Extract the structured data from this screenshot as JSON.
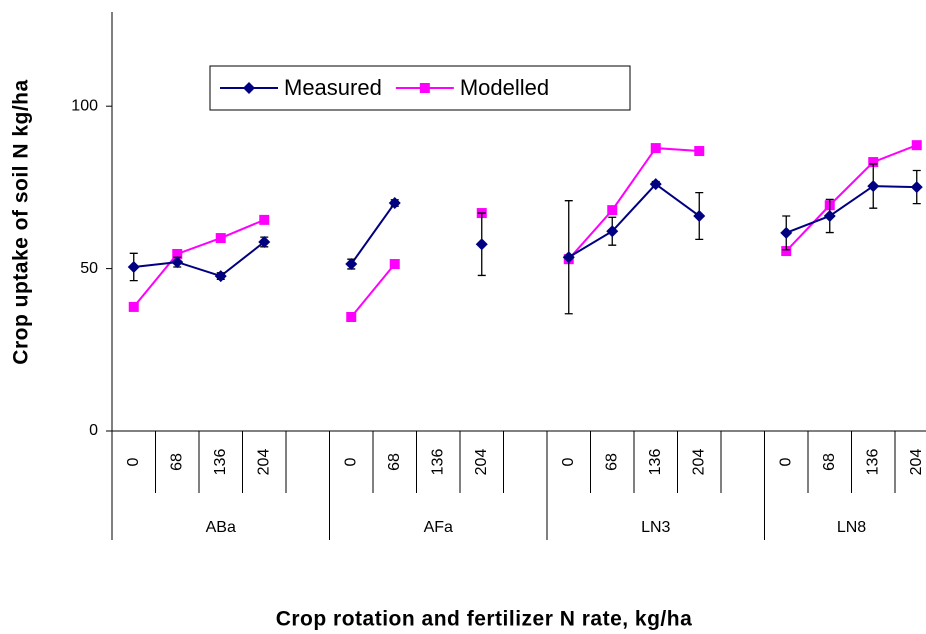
{
  "chart_data": {
    "type": "line",
    "y_label": "Crop uptake of soil N kg/ha",
    "x_label": "Crop rotation and fertilizer N rate, kg/ha",
    "categories": [
      "0",
      "68",
      "136",
      "204",
      null,
      "0",
      "68",
      "136",
      "204",
      null,
      "0",
      "68",
      "136",
      "204",
      null,
      "0",
      "68",
      "136",
      "204"
    ],
    "groups": [
      "ABa",
      "AFa",
      "LN3",
      "LN8"
    ],
    "ylim": [
      0,
      129
    ],
    "yticks": [
      0,
      50,
      100
    ],
    "series": [
      {
        "name": "Measured",
        "color": "#000080",
        "marker": "diamond",
        "values": [
          50.5,
          52,
          47.7,
          58.2,
          null,
          51.4,
          70.2,
          null,
          57.5,
          null,
          53.5,
          61.5,
          76,
          66.2,
          null,
          61,
          66.2,
          75.4,
          75.1
        ],
        "errors": [
          4.2,
          1.5,
          1,
          1.5,
          null,
          1.5,
          1,
          null,
          9.6,
          null,
          17.4,
          4.3,
          0.8,
          7.2,
          null,
          5.2,
          5.1,
          6.8,
          5.1
        ]
      },
      {
        "name": "Modelled",
        "color": "#ff00ff",
        "marker": "square",
        "values": [
          38.2,
          54.5,
          59.4,
          65,
          null,
          35.1,
          51.4,
          null,
          67.1,
          null,
          52.9,
          68,
          87.1,
          86.2,
          null,
          55.4,
          69.5,
          82.8,
          88
        ]
      }
    ]
  }
}
